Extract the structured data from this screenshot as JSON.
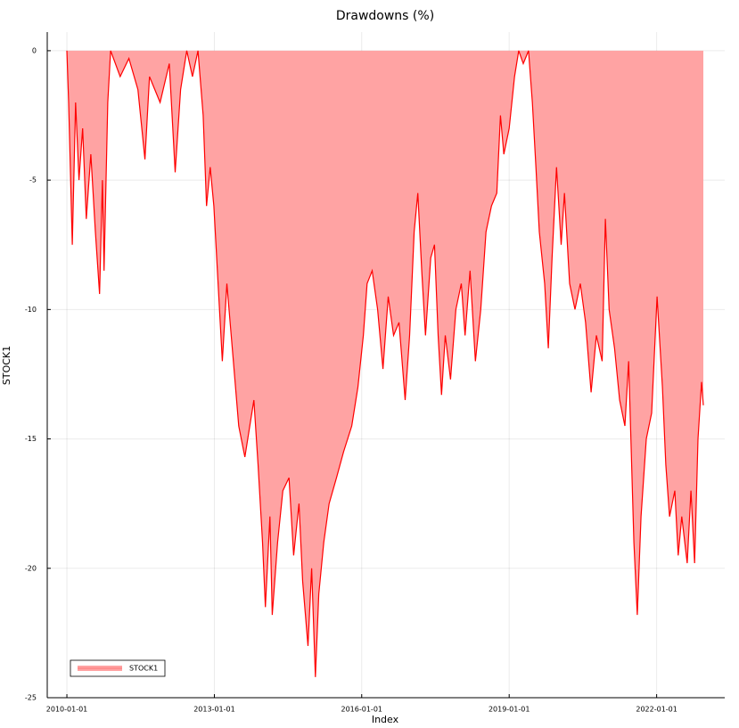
{
  "chart_data": {
    "type": "area",
    "title": "Drawdowns (%)",
    "xlabel": "Index",
    "ylabel": "STOCK1",
    "x": [
      "2010-01-01",
      "2010-01-14",
      "2010-02-10",
      "2010-03-07",
      "2010-04-01",
      "2010-04-28",
      "2010-05-25",
      "2010-06-28",
      "2010-08-01",
      "2010-09-01",
      "2010-09-22",
      "2010-10-04",
      "2010-11-01",
      "2010-11-22",
      "2011-02-01",
      "2011-04-07",
      "2011-06-13",
      "2011-08-04",
      "2011-09-07",
      "2011-11-25",
      "2012-02-01",
      "2012-03-16",
      "2012-04-25",
      "2012-06-10",
      "2012-07-22",
      "2012-09-01",
      "2012-10-10",
      "2012-11-04",
      "2012-12-01",
      "2012-12-28",
      "2013-03-01",
      "2013-04-04",
      "2013-05-22",
      "2013-07-01",
      "2013-08-16",
      "2013-10-22",
      "2013-11-22",
      "2013-12-25",
      "2014-01-15",
      "2014-02-18",
      "2014-03-07",
      "2014-04-16",
      "2014-05-25",
      "2014-07-10",
      "2014-08-13",
      "2014-09-22",
      "2014-10-19",
      "2014-11-28",
      "2014-12-25",
      "2015-01-22",
      "2015-02-16",
      "2015-03-25",
      "2015-05-04",
      "2015-06-28",
      "2015-08-19",
      "2015-10-19",
      "2015-12-04",
      "2016-01-13",
      "2016-02-10",
      "2016-03-19",
      "2016-04-28",
      "2016-06-07",
      "2016-07-16",
      "2016-08-25",
      "2016-10-04",
      "2016-11-19",
      "2016-12-22",
      "2017-01-25",
      "2017-02-21",
      "2017-03-22",
      "2017-04-19",
      "2017-05-28",
      "2017-06-25",
      "2017-07-22",
      "2017-08-16",
      "2017-09-13",
      "2017-10-22",
      "2017-12-01",
      "2018-01-10",
      "2018-02-07",
      "2018-03-16",
      "2018-04-25",
      "2018-06-04",
      "2018-07-13",
      "2018-08-22",
      "2018-10-01",
      "2018-10-28",
      "2018-11-22",
      "2019-01-01",
      "2019-02-10",
      "2019-03-13",
      "2019-04-16",
      "2019-05-25",
      "2019-06-22",
      "2019-07-19",
      "2019-08-13",
      "2019-09-22",
      "2019-10-19",
      "2019-11-16",
      "2019-12-19",
      "2020-01-22",
      "2020-02-16",
      "2020-03-25",
      "2020-05-04",
      "2020-06-13",
      "2020-07-22",
      "2020-09-01",
      "2020-10-10",
      "2020-11-22",
      "2020-12-16",
      "2021-01-13",
      "2021-02-22",
      "2021-04-01",
      "2021-05-10",
      "2021-06-07",
      "2021-07-16",
      "2021-08-10",
      "2021-09-07",
      "2021-10-16",
      "2021-11-25",
      "2022-01-04",
      "2022-02-13",
      "2022-03-10",
      "2022-04-07",
      "2022-05-16",
      "2022-06-10",
      "2022-07-07",
      "2022-08-16",
      "2022-09-13",
      "2022-10-10",
      "2022-11-04",
      "2022-12-01",
      "2022-12-14"
    ],
    "series": [
      {
        "name": "STOCK1",
        "color": "#ff0000",
        "fill": "#ffa3a3",
        "values": [
          0,
          -2,
          -7.5,
          -2,
          -5,
          -3,
          -6.5,
          -4,
          -7,
          -9.4,
          -5,
          -8.5,
          -2,
          0,
          -1,
          -0.3,
          -1.5,
          -4.2,
          -1,
          -2,
          -0.5,
          -4.7,
          -1.5,
          0,
          -1,
          0,
          -2.5,
          -6,
          -4.5,
          -6,
          -12,
          -9,
          -12,
          -14.5,
          -15.7,
          -13.5,
          -16,
          -19,
          -21.5,
          -18,
          -21.8,
          -19,
          -17,
          -16.5,
          -19.5,
          -17.5,
          -20.5,
          -23,
          -20,
          -24.2,
          -21,
          -19,
          -17.5,
          -16.5,
          -15.5,
          -14.5,
          -13,
          -11,
          -9,
          -8.5,
          -10,
          -12.3,
          -9.5,
          -11,
          -10.5,
          -13.5,
          -11,
          -7,
          -5.5,
          -8.5,
          -11,
          -8,
          -7.5,
          -11,
          -13.3,
          -11,
          -12.7,
          -10,
          -9,
          -11,
          -8.5,
          -12,
          -10,
          -7,
          -6,
          -5.5,
          -2.5,
          -4,
          -3,
          -1,
          0,
          -0.5,
          0,
          -2,
          -4.5,
          -7,
          -9,
          -11.5,
          -8,
          -4.5,
          -7.5,
          -5.5,
          -9,
          -10,
          -9,
          -10.5,
          -13.2,
          -11,
          -12,
          -6.5,
          -10,
          -11.5,
          -13.5,
          -14.5,
          -12,
          -19,
          -21.8,
          -18,
          -15,
          -14,
          -9.5,
          -13,
          -16,
          -18,
          -17,
          -19.5,
          -18,
          -19.8,
          -17,
          -19.8,
          -15,
          -12.8,
          -13.7
        ]
      }
    ],
    "xlim": [
      "2009-08-08",
      "2023-05-22"
    ],
    "xticks": [
      "2010-01-01",
      "2013-01-01",
      "2016-01-01",
      "2019-01-01",
      "2022-01-01"
    ],
    "ylim": [
      -25,
      0.72
    ],
    "yticks": [
      -25,
      -20,
      -15,
      -10,
      -5,
      0
    ],
    "grid": true,
    "legend": "bottom-left"
  }
}
